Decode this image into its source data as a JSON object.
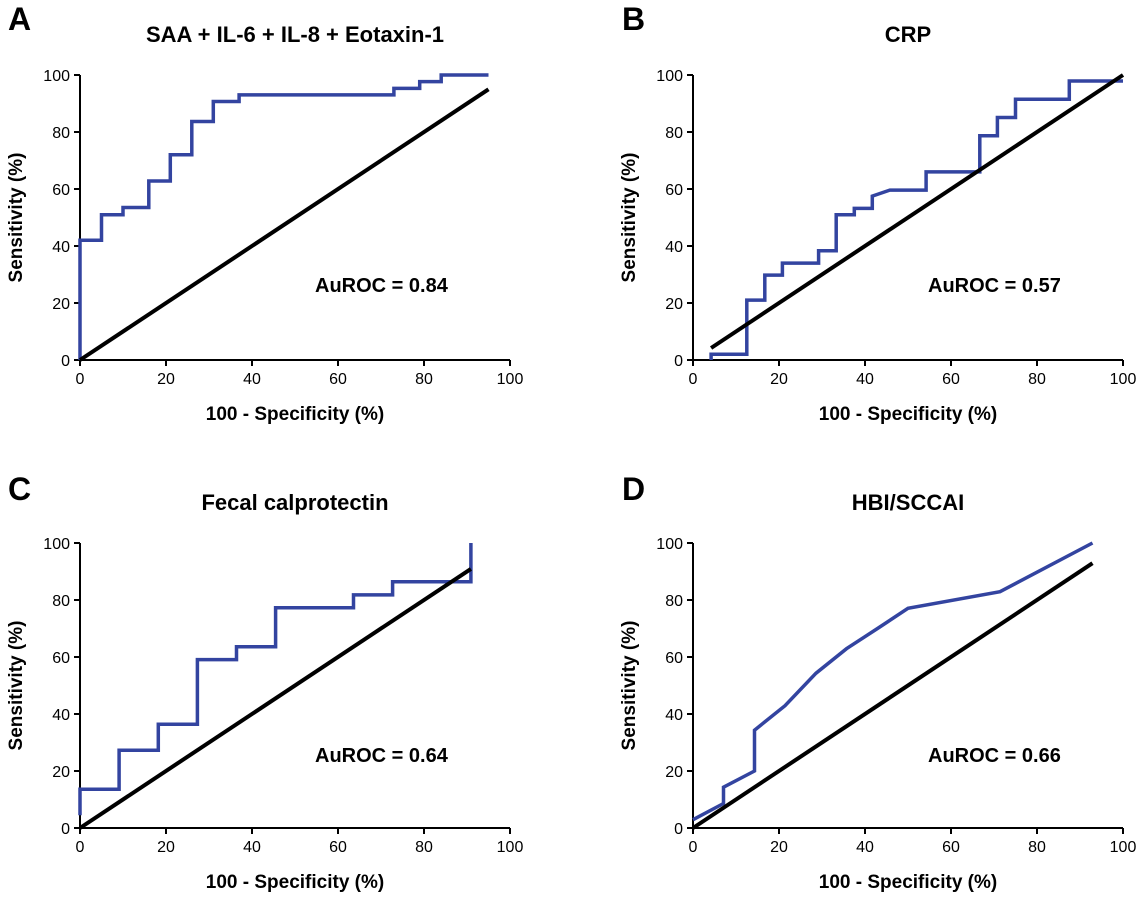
{
  "colors": {
    "roc": "#3344a0",
    "reference": "#000000"
  },
  "chart_data": [
    {
      "panel": "A",
      "type": "line",
      "title": "SAA + IL-6 + IL-8 + Eotaxin-1",
      "xlabel": "100 - Specificity (%)",
      "ylabel": "Sensitivity (%)",
      "xlim": [
        0,
        100
      ],
      "ylim": [
        0,
        100
      ],
      "xticks": [
        0,
        20,
        40,
        60,
        80,
        100
      ],
      "yticks": [
        0,
        20,
        40,
        60,
        80,
        100
      ],
      "annotation": "AuROC = 0.84",
      "series": [
        {
          "role": "roc",
          "x": [
            0,
            0,
            0,
            5,
            5,
            10,
            10,
            16,
            16,
            21,
            21,
            26,
            26,
            31,
            31,
            37,
            37,
            73,
            73,
            79,
            79,
            84,
            84,
            95
          ],
          "y": [
            0,
            42,
            42,
            42,
            51,
            51,
            53.5,
            53.5,
            62.8,
            62.8,
            72,
            72,
            83.7,
            83.7,
            90.7,
            90.7,
            93,
            93,
            95.3,
            95.3,
            97.7,
            97.7,
            100,
            100
          ]
        },
        {
          "role": "reference",
          "x": [
            0,
            95
          ],
          "y": [
            0,
            95
          ]
        }
      ]
    },
    {
      "panel": "B",
      "type": "line",
      "title": "CRP",
      "xlabel": "100 - Specificity (%)",
      "ylabel": "Sensitivity (%)",
      "xlim": [
        0,
        100
      ],
      "ylim": [
        0,
        100
      ],
      "xticks": [
        0,
        20,
        40,
        60,
        80,
        100
      ],
      "yticks": [
        0,
        20,
        40,
        60,
        80,
        100
      ],
      "annotation": "AuROC = 0.57",
      "series": [
        {
          "role": "roc",
          "x": [
            4.2,
            4.2,
            12.5,
            12.5,
            16.7,
            16.7,
            20.8,
            20.8,
            29.2,
            29.2,
            33.3,
            33.3,
            37.5,
            37.5,
            41.7,
            41.7,
            45.8,
            45.8,
            54.2,
            54.2,
            66.7,
            66.7,
            70.8,
            70.8,
            75,
            75,
            87.5,
            87.5,
            100
          ],
          "y": [
            0,
            2,
            2,
            21,
            21,
            29.8,
            29.8,
            34,
            34,
            38.3,
            38.3,
            51,
            51,
            53.2,
            53.2,
            57.5,
            59.6,
            59.6,
            59.6,
            66,
            66,
            78.7,
            78.7,
            85.1,
            85.1,
            91.5,
            91.5,
            97.9,
            97.9
          ]
        },
        {
          "role": "reference",
          "x": [
            4.2,
            100
          ],
          "y": [
            4.2,
            100
          ]
        }
      ]
    },
    {
      "panel": "C",
      "type": "line",
      "title": "Fecal calprotectin",
      "xlabel": "100 - Specificity (%)",
      "ylabel": "Sensitivity (%)",
      "xlim": [
        0,
        100
      ],
      "ylim": [
        0,
        100
      ],
      "xticks": [
        0,
        20,
        40,
        60,
        80,
        100
      ],
      "yticks": [
        0,
        20,
        40,
        60,
        80,
        100
      ],
      "annotation": "AuROC = 0.64",
      "series": [
        {
          "role": "roc",
          "x": [
            0,
            0,
            9.1,
            9.1,
            18.2,
            18.2,
            27.3,
            27.3,
            36.4,
            36.4,
            45.5,
            45.5,
            63.6,
            63.6,
            72.7,
            72.7,
            90.9,
            90.9
          ],
          "y": [
            4.5,
            13.6,
            13.6,
            27.3,
            27.3,
            36.4,
            36.4,
            59.1,
            59.1,
            63.6,
            63.6,
            77.3,
            77.3,
            81.8,
            81.8,
            86.4,
            86.4,
            100
          ]
        },
        {
          "role": "reference",
          "x": [
            0,
            90.9
          ],
          "y": [
            0,
            90.9
          ]
        }
      ]
    },
    {
      "panel": "D",
      "type": "line",
      "title": "HBI/SCCAI",
      "xlabel": "100 - Specificity (%)",
      "ylabel": "Sensitivity (%)",
      "xlim": [
        0,
        100
      ],
      "ylim": [
        0,
        100
      ],
      "xticks": [
        0,
        20,
        40,
        60,
        80,
        100
      ],
      "yticks": [
        0,
        20,
        40,
        60,
        80,
        100
      ],
      "annotation": "AuROC = 0.66",
      "series": [
        {
          "role": "roc",
          "x": [
            0,
            7.1,
            7.1,
            14.3,
            14.3,
            21.4,
            28.6,
            35.7,
            42.9,
            50,
            71.4,
            92.9
          ],
          "y": [
            2.9,
            8.6,
            14.3,
            20,
            34.3,
            42.9,
            54.3,
            62.9,
            70,
            77.1,
            82.9,
            100
          ]
        },
        {
          "role": "reference",
          "x": [
            0,
            92.9
          ],
          "y": [
            0,
            92.9
          ]
        }
      ]
    }
  ]
}
